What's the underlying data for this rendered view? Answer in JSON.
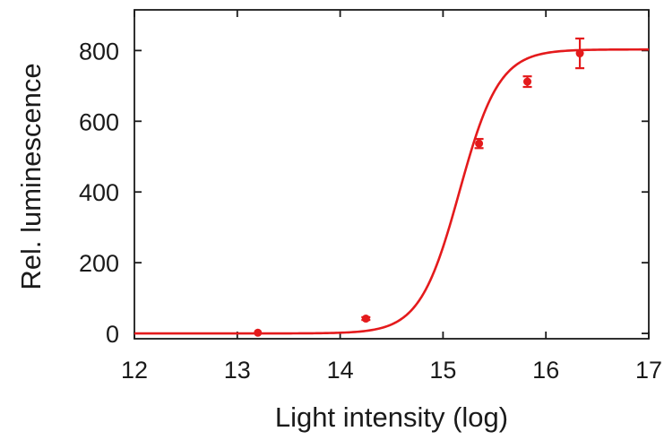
{
  "chart_data": {
    "type": "scatter",
    "title": "",
    "xlabel": "Light intensity (log)",
    "ylabel": "Rel. luminescence",
    "xlim": [
      12,
      17
    ],
    "ylim": [
      -15,
      915
    ],
    "x_ticks": [
      12,
      13,
      14,
      15,
      16,
      17
    ],
    "y_ticks": [
      0,
      200,
      400,
      600,
      800
    ],
    "grid": false,
    "legend": "none",
    "series": [
      {
        "color": "#e41a1c",
        "points": [
          {
            "x": 13.2,
            "y": 2,
            "err": 0
          },
          {
            "x": 14.25,
            "y": 42,
            "err": 4
          },
          {
            "x": 15.35,
            "y": 537,
            "err": 13
          },
          {
            "x": 15.82,
            "y": 712,
            "err": 15
          },
          {
            "x": 16.33,
            "y": 792,
            "err": 42
          }
        ],
        "fit": {
          "type": "sigmoid",
          "bottom": 0,
          "top": 803,
          "x50": 15.16,
          "slope": 2.25,
          "x_range": [
            12,
            17
          ]
        }
      }
    ]
  }
}
